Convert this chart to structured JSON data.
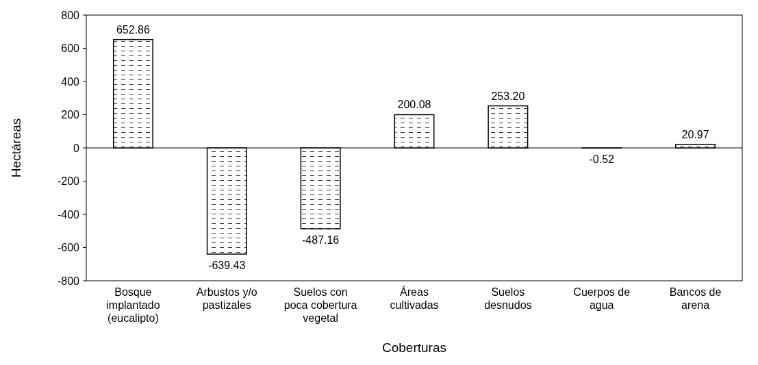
{
  "chart_data": {
    "type": "bar",
    "xlabel": "Coberturas",
    "ylabel": "Hectáreas",
    "categories": [
      "Bosque implantado (eucalipto)",
      "Arbustos y/o pastizales",
      "Suelos con poca cobertura vegetal",
      "Áreas cultivadas",
      "Suelos desnudos",
      "Cuerpos de agua",
      "Bancos de arena"
    ],
    "values": [
      652.86,
      -639.43,
      -487.16,
      200.08,
      253.2,
      -0.52,
      20.97
    ],
    "value_labels": [
      "652.86",
      "-639.43",
      "-487.16",
      "200.08",
      "253.20",
      "-0.52",
      "20.97"
    ],
    "color": "#000000",
    "ylim": [
      -800,
      800
    ],
    "yticks": [
      -800,
      -600,
      -400,
      -200,
      0,
      200,
      400,
      600,
      800
    ]
  }
}
